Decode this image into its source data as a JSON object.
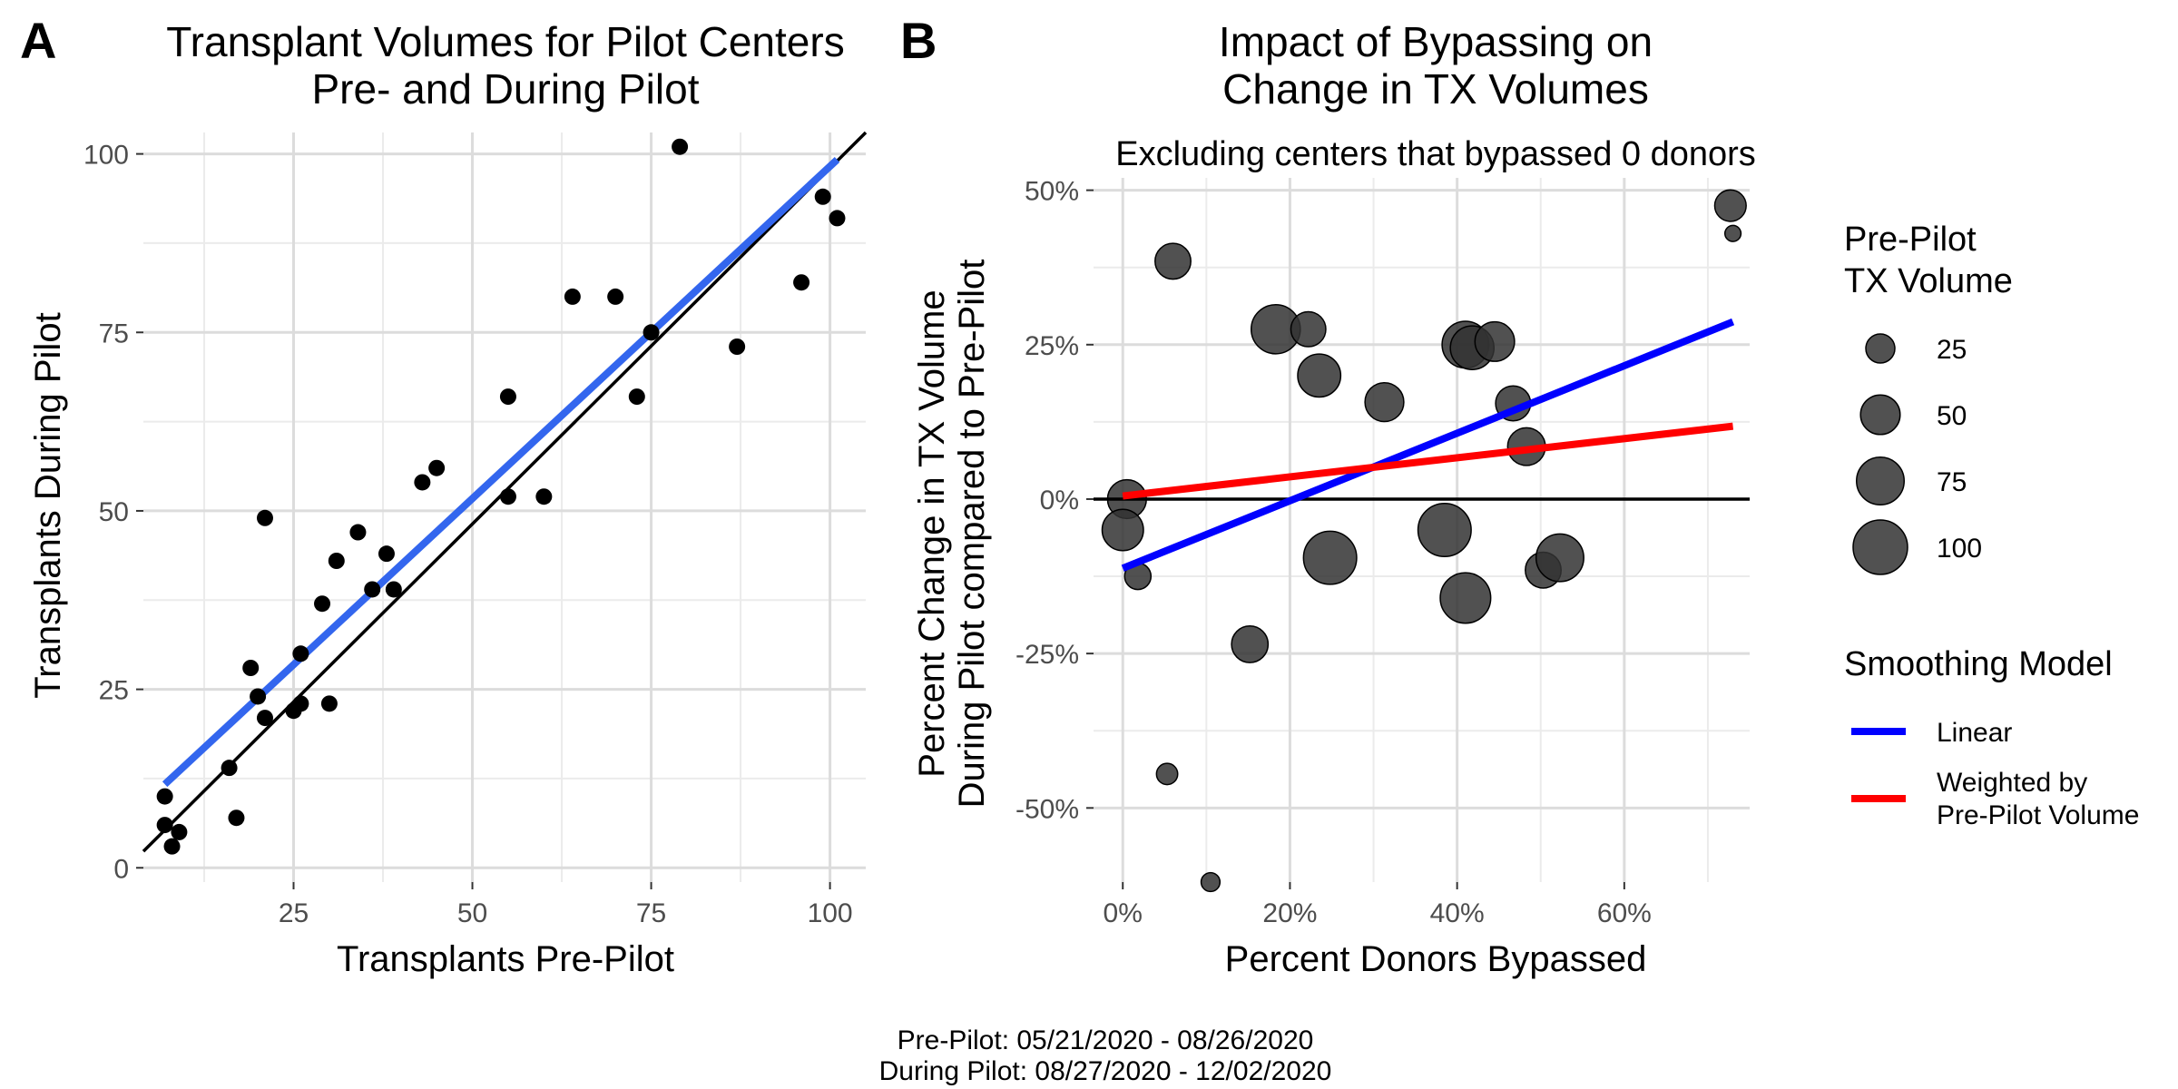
{
  "caption": {
    "line1": "Pre-Pilot: 05/21/2020 - 08/26/2020",
    "line2": "During Pilot: 08/27/2020 - 12/02/2020"
  },
  "chart_data": [
    {
      "panel_label": "A",
      "type": "scatter",
      "title_line1": "Transplant Volumes for Pilot Centers",
      "title_line2": "Pre- and During Pilot",
      "xlabel": "Transplants Pre-Pilot",
      "ylabel": "Transplants During Pilot",
      "xlim": [
        4,
        105
      ],
      "ylim": [
        -2,
        103
      ],
      "x_ticks": [
        25,
        50,
        75,
        100
      ],
      "y_ticks": [
        0,
        25,
        50,
        75,
        100
      ],
      "grid": true,
      "points": [
        {
          "x": 7,
          "y": 10
        },
        {
          "x": 7,
          "y": 6
        },
        {
          "x": 8,
          "y": 3
        },
        {
          "x": 9,
          "y": 5
        },
        {
          "x": 16,
          "y": 14
        },
        {
          "x": 17,
          "y": 7
        },
        {
          "x": 19,
          "y": 28
        },
        {
          "x": 20,
          "y": 24
        },
        {
          "x": 21,
          "y": 49
        },
        {
          "x": 21,
          "y": 21
        },
        {
          "x": 25,
          "y": 22
        },
        {
          "x": 26,
          "y": 23
        },
        {
          "x": 26,
          "y": 30
        },
        {
          "x": 29,
          "y": 37
        },
        {
          "x": 30,
          "y": 23
        },
        {
          "x": 31,
          "y": 43
        },
        {
          "x": 34,
          "y": 47
        },
        {
          "x": 36,
          "y": 39
        },
        {
          "x": 38,
          "y": 44
        },
        {
          "x": 39,
          "y": 39
        },
        {
          "x": 43,
          "y": 54
        },
        {
          "x": 45,
          "y": 56
        },
        {
          "x": 55,
          "y": 66
        },
        {
          "x": 55,
          "y": 52
        },
        {
          "x": 60,
          "y": 52
        },
        {
          "x": 64,
          "y": 80
        },
        {
          "x": 70,
          "y": 80
        },
        {
          "x": 73,
          "y": 66
        },
        {
          "x": 75,
          "y": 75
        },
        {
          "x": 79,
          "y": 101
        },
        {
          "x": 87,
          "y": 73
        },
        {
          "x": 96,
          "y": 82
        },
        {
          "x": 99,
          "y": 94
        },
        {
          "x": 101,
          "y": 91
        }
      ],
      "lines": [
        {
          "kind": "identity",
          "color": "#000000",
          "x": [
            4,
            105
          ],
          "y": [
            2.3,
            103
          ]
        },
        {
          "kind": "fit",
          "color": "#3366ee",
          "x": [
            7,
            101
          ],
          "y": [
            11.7,
            99.2
          ]
        }
      ]
    },
    {
      "panel_label": "B",
      "type": "scatter",
      "title_line1": "Impact of Bypassing on",
      "title_line2": "Change in TX Volumes",
      "subtitle": "Excluding centers that bypassed 0 donors",
      "xlabel": "Percent Donors Bypassed",
      "ylabel_line1": "Percent Change in TX Volume",
      "ylabel_line2": "During Pilot compared to Pre-Pilot",
      "xlim": [
        -0.035,
        0.75
      ],
      "ylim": [
        -0.62,
        0.52
      ],
      "x_ticks": [
        0,
        0.2,
        0.4,
        0.6
      ],
      "x_tick_labels": [
        "0%",
        "20%",
        "40%",
        "60%"
      ],
      "y_ticks": [
        -0.5,
        -0.25,
        0,
        0.25,
        0.5
      ],
      "y_tick_labels": [
        "-50%",
        "-25%",
        "0%",
        "25%",
        "50%"
      ],
      "grid": true,
      "point_color": "#333333",
      "point_opacity": 0.85,
      "hline_y": 0,
      "points": [
        {
          "x": 0.005,
          "y": 0.0,
          "size": 48
        },
        {
          "x": 0.0,
          "y": -0.05,
          "size": 55
        },
        {
          "x": 0.018,
          "y": -0.125,
          "size": 20
        },
        {
          "x": 0.06,
          "y": 0.385,
          "size": 40
        },
        {
          "x": 0.053,
          "y": -0.445,
          "size": 12
        },
        {
          "x": 0.105,
          "y": -0.62,
          "size": 9
        },
        {
          "x": 0.152,
          "y": -0.235,
          "size": 42
        },
        {
          "x": 0.183,
          "y": 0.275,
          "size": 80
        },
        {
          "x": 0.222,
          "y": 0.275,
          "size": 38
        },
        {
          "x": 0.235,
          "y": 0.2,
          "size": 60
        },
        {
          "x": 0.248,
          "y": -0.095,
          "size": 95
        },
        {
          "x": 0.313,
          "y": 0.157,
          "size": 48
        },
        {
          "x": 0.385,
          "y": -0.05,
          "size": 95
        },
        {
          "x": 0.41,
          "y": -0.16,
          "size": 85
        },
        {
          "x": 0.41,
          "y": 0.25,
          "size": 72
        },
        {
          "x": 0.418,
          "y": 0.245,
          "size": 62
        },
        {
          "x": 0.445,
          "y": 0.255,
          "size": 50
        },
        {
          "x": 0.467,
          "y": 0.155,
          "size": 38
        },
        {
          "x": 0.483,
          "y": 0.085,
          "size": 45
        },
        {
          "x": 0.503,
          "y": -0.115,
          "size": 40
        },
        {
          "x": 0.523,
          "y": -0.095,
          "size": 75
        },
        {
          "x": 0.727,
          "y": 0.475,
          "size": 30
        },
        {
          "x": 0.73,
          "y": 0.43,
          "size": 6
        }
      ],
      "lines": [
        {
          "name": "Linear",
          "color": "#0000ff",
          "x": [
            0.0,
            0.73
          ],
          "y": [
            -0.112,
            0.287
          ]
        },
        {
          "name": "Weighted by Pre-Pilot Volume",
          "color": "#ff0000",
          "x": [
            0.0,
            0.73
          ],
          "y": [
            0.005,
            0.118
          ]
        }
      ],
      "size_legend": {
        "title_line1": "Pre-Pilot",
        "title_line2": "TX Volume",
        "values": [
          25,
          50,
          75,
          100
        ]
      },
      "line_legend": {
        "title": "Smoothing Model",
        "items": [
          {
            "label_lines": [
              "Linear"
            ],
            "color": "#0000ff"
          },
          {
            "label_lines": [
              "Weighted by",
              "Pre-Pilot Volume"
            ],
            "color": "#ff0000"
          }
        ]
      }
    }
  ]
}
